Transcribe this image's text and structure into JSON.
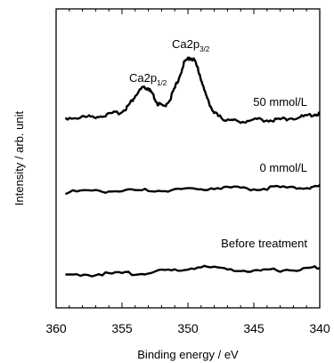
{
  "chart_data": {
    "type": "line",
    "xlabel": "Binding energy / eV",
    "ylabel": "Intensity / arb. unit",
    "xlim": [
      360,
      340
    ],
    "x_reversed": true,
    "x_ticks": [
      "360",
      "355",
      "350",
      "345",
      "340"
    ],
    "y_ticks_labeled": false,
    "grid": false,
    "line_color": "#000000",
    "series": [
      {
        "name": "50 mmol/L",
        "x": [
          359.3,
          358,
          357,
          356,
          355,
          354.5,
          354,
          353.5,
          353,
          352.7,
          352.3,
          351.8,
          351.3,
          350.8,
          350.3,
          349.9,
          349.5,
          349.1,
          348.7,
          348.2,
          347.7,
          347.2,
          346.5,
          345.5,
          344.5,
          343.5,
          342.5,
          341.5,
          340.5,
          340
        ],
        "y": [
          0.1,
          0.12,
          0.15,
          0.2,
          0.3,
          0.5,
          0.8,
          1.05,
          1.05,
          0.85,
          0.55,
          0.45,
          0.75,
          1.25,
          1.85,
          2.05,
          1.95,
          1.5,
          0.9,
          0.4,
          0.15,
          0.05,
          0.0,
          0.0,
          0.05,
          0.02,
          0.08,
          0.12,
          0.2,
          0.25
        ]
      },
      {
        "name": "0 mmol/L",
        "x": [
          359.3,
          357,
          355,
          353,
          351,
          349,
          347,
          345,
          343,
          341,
          340
        ],
        "y": [
          0.0,
          0.02,
          0.05,
          0.05,
          0.08,
          0.12,
          0.14,
          0.12,
          0.14,
          0.16,
          0.18
        ]
      },
      {
        "name": "Before treatment",
        "x": [
          359.3,
          357,
          355,
          353,
          351,
          349,
          347,
          345,
          343,
          341,
          340
        ],
        "y": [
          0.0,
          0.02,
          0.05,
          0.07,
          0.15,
          0.26,
          0.2,
          0.12,
          0.16,
          0.2,
          0.24
        ]
      }
    ],
    "annotations": [
      {
        "main": "Ca2p",
        "sub": "1/2"
      },
      {
        "main": "Ca2p",
        "sub": "3/2"
      }
    ]
  }
}
